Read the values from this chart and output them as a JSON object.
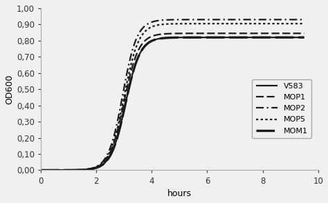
{
  "title": "",
  "xlabel": "hours",
  "ylabel": "OD600",
  "xlim": [
    0,
    10
  ],
  "ylim": [
    0.0,
    1.0
  ],
  "xticks": [
    0,
    2,
    4,
    6,
    8,
    10
  ],
  "yticks": [
    0.0,
    0.1,
    0.2,
    0.3,
    0.4,
    0.5,
    0.6,
    0.7,
    0.8,
    0.9,
    1.0
  ],
  "series_params": {
    "V583": {
      "od_max": 0.82,
      "lag": 3.05,
      "rate": 3.8
    },
    "MOP1": {
      "od_max": 0.845,
      "lag": 3.0,
      "rate": 3.8
    },
    "MOP2": {
      "od_max": 0.93,
      "lag": 2.95,
      "rate": 3.9
    },
    "MOP5": {
      "od_max": 0.905,
      "lag": 3.0,
      "rate": 3.8
    },
    "MOM1": {
      "od_max": 0.82,
      "lag": 3.05,
      "rate": 3.8
    }
  },
  "background_color": "#f0f0f0",
  "plot_bg_color": "#f0f0f0"
}
